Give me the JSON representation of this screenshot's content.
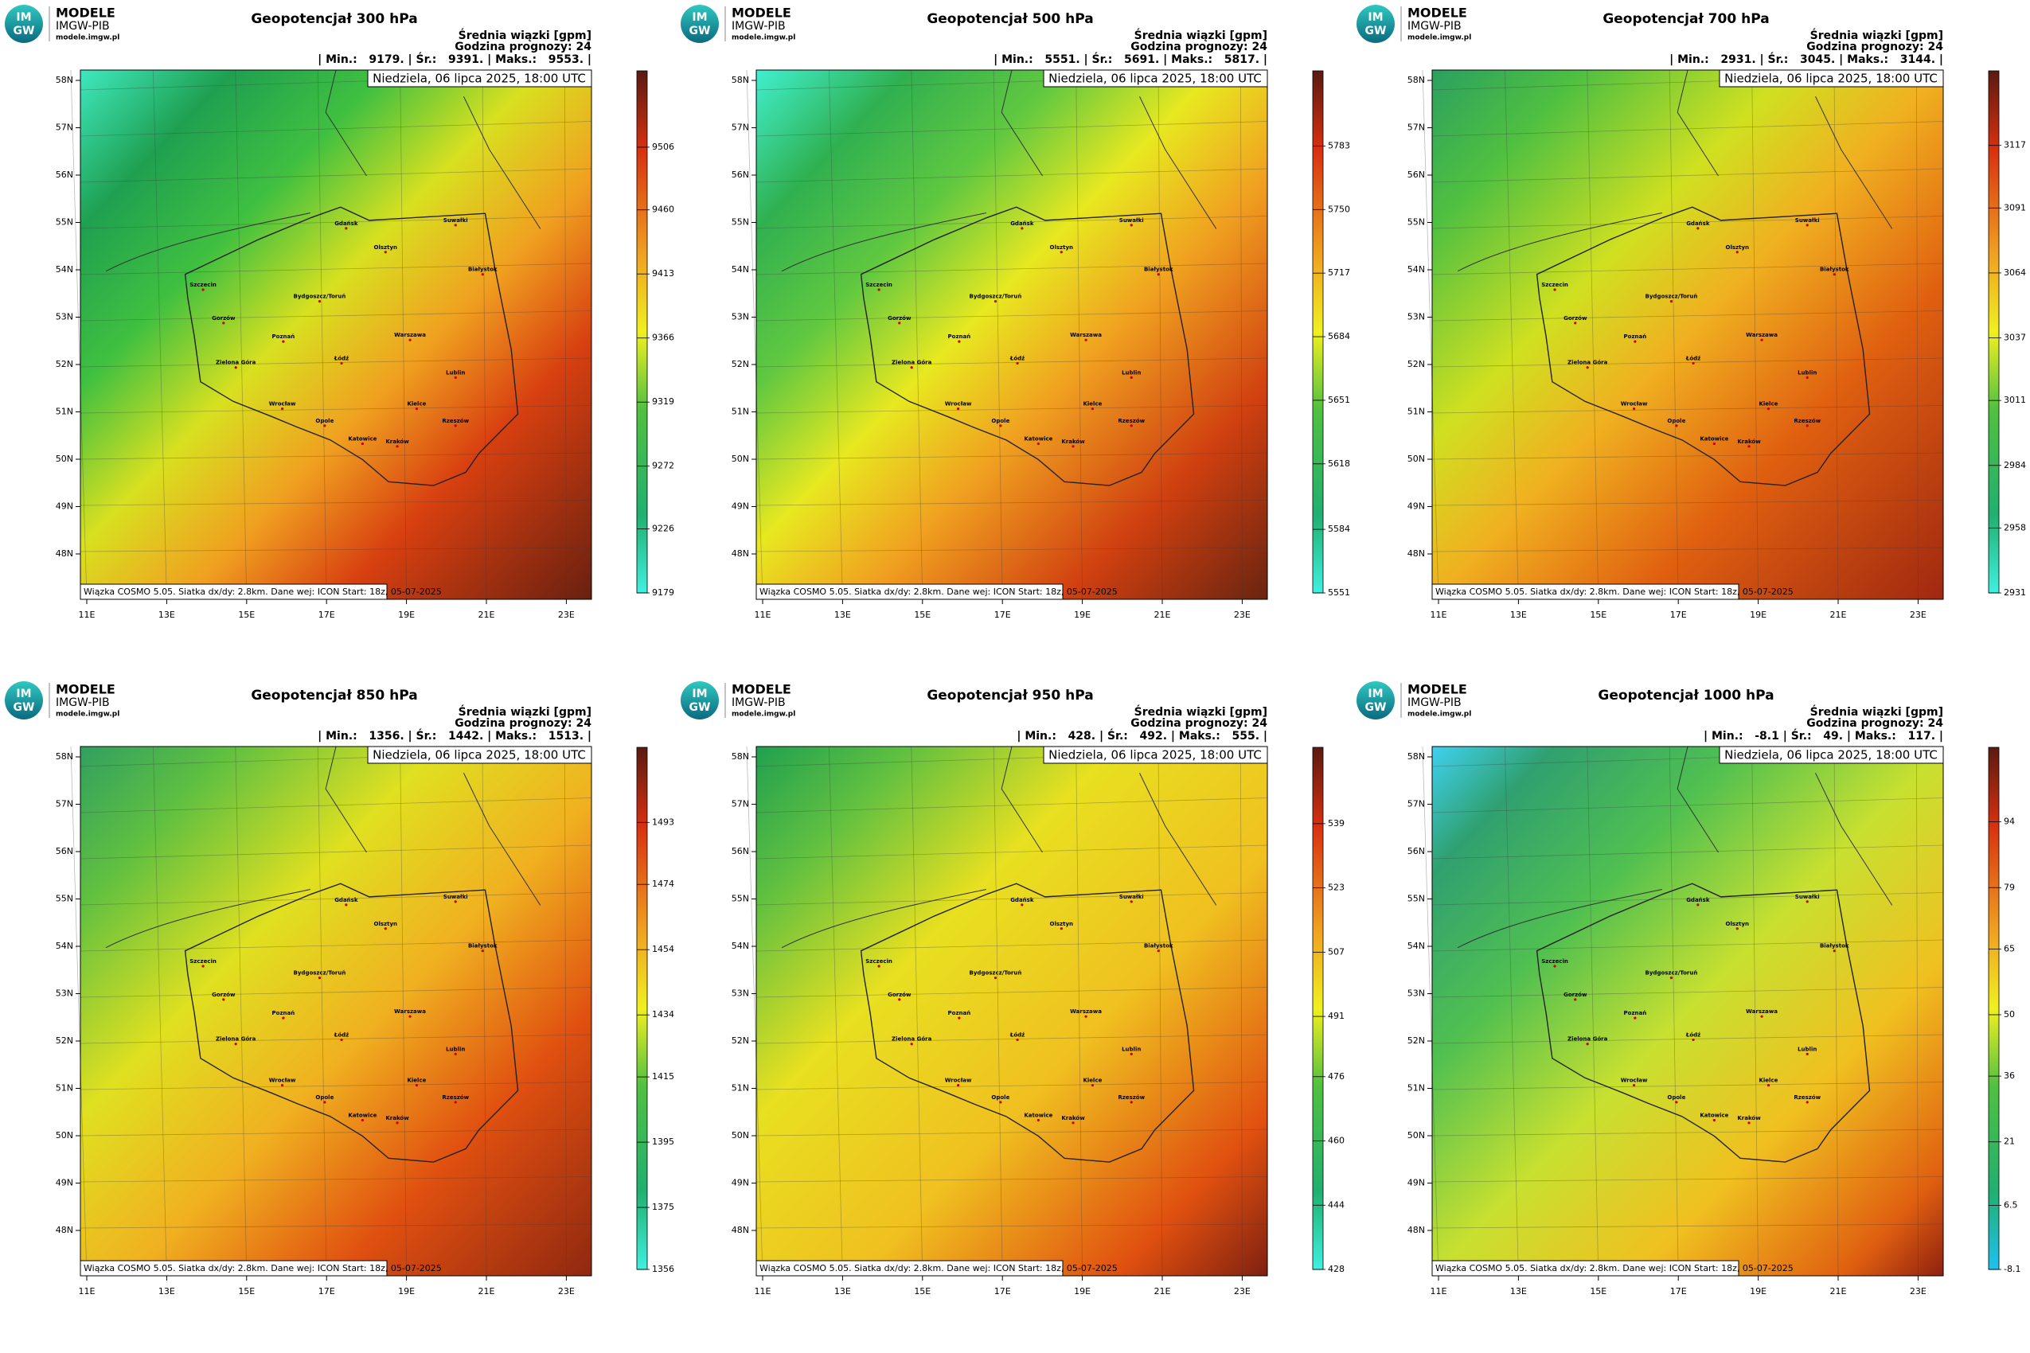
{
  "common": {
    "logo": {
      "icon_top": "IM",
      "icon_bottom": "GW",
      "brand": "MODELE",
      "org": "IMGW-PIB",
      "url": "modele.imgw.pl"
    },
    "subtitle": [
      "Średnia wiązki [gpm]",
      "Godzina prognozy: 24"
    ],
    "date": "Niedziela, 06 lipca 2025, 18:00 UTC",
    "footer": "Wiązka COSMO 5.05. Siatka dx/dy: 2.8km. Dane wej: ICON Start: 18z, 05-07-2025",
    "lat_labels": [
      "58N",
      "57N",
      "56N",
      "55N",
      "54N",
      "53N",
      "52N",
      "51N",
      "50N",
      "49N",
      "48N"
    ],
    "lon_labels": [
      "11E",
      "13E",
      "15E",
      "17E",
      "19E",
      "21E",
      "23E"
    ],
    "cities": [
      "Gdańsk",
      "Olsztyn",
      "Suwałki",
      "Białystok",
      "Szczecin",
      "Bydgoszcz/Toruń",
      "Gorzów",
      "Poznań",
      "Warszawa",
      "Zielona Góra",
      "Łódź",
      "Lublin",
      "Wrocław",
      "Kielce",
      "Opole",
      "Katowice",
      "Kraków",
      "Rzeszów"
    ]
  },
  "panels": [
    {
      "title": "Geopotencjał 300 hPa",
      "stats": "| Min.:   9179. | Śr.:   9391. | Maks.:   9553. |",
      "colorbar": {
        "range": [
          9179,
          9562
        ],
        "ticks": [
          9179,
          9226,
          9272,
          9319,
          9366,
          9413,
          9460,
          9506
        ]
      }
    },
    {
      "title": "Geopotencjał 500 hPa",
      "stats": "| Min.:   5551. | Śr.:   5691. | Maks.:   5817. |",
      "colorbar": {
        "range": [
          5551,
          5822
        ],
        "ticks": [
          5551,
          5584,
          5618,
          5651,
          5684,
          5717,
          5750,
          5783
        ]
      }
    },
    {
      "title": "Geopotencjał 700 hPa",
      "stats": "| Min.:   2931. | Śr.:   3045. | Maks.:   3144. |",
      "colorbar": {
        "range": [
          2931,
          3148
        ],
        "ticks": [
          2931,
          2958,
          2984,
          3011,
          3037,
          3064,
          3091,
          3117
        ]
      }
    },
    {
      "title": "Geopotencjał 850 hPa",
      "stats": "| Min.:   1356. | Śr.:   1442. | Maks.:   1513. |",
      "colorbar": {
        "range": [
          1356,
          1516
        ],
        "ticks": [
          1356,
          1375,
          1395,
          1415,
          1434,
          1454,
          1474,
          1493
        ]
      }
    },
    {
      "title": "Geopotencjał 950 hPa",
      "stats": "| Min.:   428. | Śr.:   492. | Maks.:   555. |",
      "colorbar": {
        "range": [
          428,
          558
        ],
        "ticks": [
          428,
          444,
          460,
          476,
          491,
          507,
          523,
          539
        ]
      }
    },
    {
      "title": "Geopotencjał 1000 hPa",
      "stats": "| Min.:   -8.1 | Śr.:   49. | Maks.:   117. |",
      "colorbar": {
        "range": [
          -8.1,
          111
        ],
        "ticks": [
          -8.1,
          6.5,
          21,
          36,
          50,
          65,
          79,
          94
        ]
      }
    }
  ]
}
